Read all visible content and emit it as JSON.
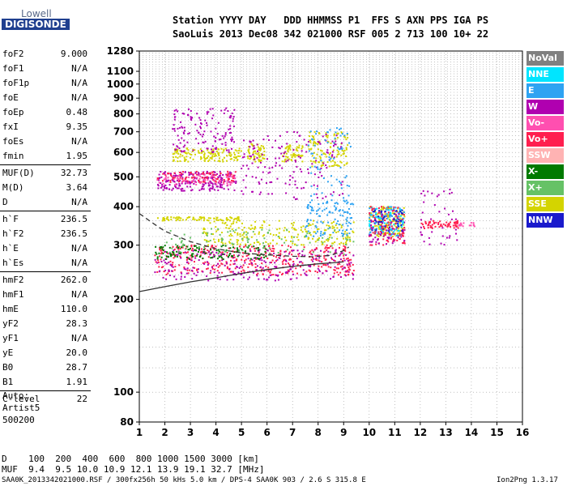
{
  "logo": {
    "top": "Lowell",
    "bottom": "DIGISONDE"
  },
  "header": {
    "line1": "Station YYYY DAY   DDD HHMMSS P1  FFS S AXN PPS IGA PS",
    "line2": "SaoLuis 2013 Dec08 342 021000 RSF 005 2 713 100 10+ 22"
  },
  "params": [
    [
      {
        "k": "foF2",
        "v": "9.000"
      },
      {
        "k": "foF1",
        "v": "N/A"
      },
      {
        "k": "foF1p",
        "v": "N/A"
      },
      {
        "k": "foE",
        "v": "N/A"
      },
      {
        "k": "foEp",
        "v": "0.48"
      },
      {
        "k": "fxI",
        "v": "9.35"
      },
      {
        "k": "foEs",
        "v": "N/A"
      },
      {
        "k": "fmin",
        "v": "1.95"
      }
    ],
    [
      {
        "k": "MUF(D)",
        "v": "32.73"
      },
      {
        "k": "M(D)",
        "v": "3.64"
      },
      {
        "k": "D",
        "v": "N/A"
      }
    ],
    [
      {
        "k": "h`F",
        "v": "236.5"
      },
      {
        "k": "h`F2",
        "v": "236.5"
      },
      {
        "k": "h`E",
        "v": "N/A"
      },
      {
        "k": "h`Es",
        "v": "N/A"
      }
    ],
    [
      {
        "k": "hmF2",
        "v": "262.0"
      },
      {
        "k": "hmF1",
        "v": "N/A"
      },
      {
        "k": "hmE",
        "v": "110.0"
      },
      {
        "k": "yF2",
        "v": "28.3"
      },
      {
        "k": "yF1",
        "v": "N/A"
      },
      {
        "k": "yE",
        "v": "20.0"
      },
      {
        "k": "B0",
        "v": "28.7"
      },
      {
        "k": "B1",
        "v": "1.91"
      }
    ],
    [
      {
        "k": "C-level",
        "v": "22"
      }
    ]
  ],
  "auto": {
    "line1": "Auto:",
    "line2": "Artist5",
    "line3": "500200"
  },
  "legend": [
    {
      "label": "NoVal",
      "color": "#808080"
    },
    {
      "label": "NNE",
      "color": "#00e5ff"
    },
    {
      "label": "E",
      "color": "#2fa3f2"
    },
    {
      "label": "W",
      "color": "#b000b0"
    },
    {
      "label": "Vo-",
      "color": "#ff4fb0"
    },
    {
      "label": "Vo+",
      "color": "#ff1f4f"
    },
    {
      "label": "SSW",
      "color": "#ffb3b3"
    },
    {
      "label": "X-",
      "color": "#007a00"
    },
    {
      "label": "X+",
      "color": "#66c266"
    },
    {
      "label": "SSE",
      "color": "#d4d400"
    },
    {
      "label": "NNW",
      "color": "#1a1acc"
    }
  ],
  "footer": {
    "d_row": "D    100  200  400  600  800 1000 1500 3000 [km]",
    "muf_row": "MUF  9.4  9.5 10.0 10.9 12.1 13.9 19.1 32.7 [MHz]",
    "info": "SAA0K_2013342021000.RSF / 300fx256h 50 kHs 5.0 km / DPS-4 SAA0K 903 / 2.6 S 315.8 E",
    "version": "Ion2Png 1.3.17"
  },
  "chart_data": {
    "type": "scatter",
    "xlabel": "",
    "ylabel": "",
    "xlim": [
      1,
      16
    ],
    "ylim": [
      80,
      1280
    ],
    "y_scale": "log",
    "x_ticks": [
      "1",
      "2",
      "3",
      "4",
      "5",
      "6",
      "7",
      "8",
      "9",
      "10",
      "11",
      "12",
      "13",
      "14",
      "15",
      "16"
    ],
    "y_ticks": [
      "80",
      "100",
      "200",
      "300",
      "400",
      "500",
      "600",
      "700",
      "800",
      "900",
      "1000",
      "1100",
      "1280"
    ],
    "trace_curves": [
      {
        "name": "dashed",
        "style": "dashed",
        "x": [
          1.0,
          1.5,
          2.0,
          3.0,
          4.0,
          5.0,
          6.0,
          7.0,
          7.8,
          8.5,
          9.0,
          9.2
        ],
        "y": [
          380,
          355,
          333,
          308,
          292,
          283,
          279,
          276,
          275,
          278,
          288,
          296
        ]
      },
      {
        "name": "solid",
        "style": "solid",
        "x": [
          1.0,
          2.0,
          3.0,
          4.0,
          5.0,
          6.0,
          7.0,
          8.0,
          8.6,
          9.0
        ],
        "y": [
          212,
          220,
          228,
          235,
          243,
          250,
          256,
          261,
          263,
          265
        ]
      }
    ],
    "point_clusters": [
      {
        "color": "#b000b0",
        "xr": [
          1.7,
          4.8
        ],
        "yr": [
          450,
          520
        ],
        "n": 220
      },
      {
        "color": "#ff1f4f",
        "xr": [
          1.7,
          4.8
        ],
        "yr": [
          480,
          520
        ],
        "n": 90
      },
      {
        "color": "#ff4fb0",
        "xr": [
          1.7,
          4.8
        ],
        "yr": [
          470,
          510
        ],
        "n": 60
      },
      {
        "color": "#d4d400",
        "xr": [
          2.3,
          5.0
        ],
        "yr": [
          560,
          620
        ],
        "n": 140
      },
      {
        "color": "#b000b0",
        "xr": [
          2.3,
          4.8
        ],
        "yr": [
          600,
          840
        ],
        "n": 140
      },
      {
        "color": "#d4d400",
        "xr": [
          5.2,
          5.9
        ],
        "yr": [
          560,
          640
        ],
        "n": 60
      },
      {
        "color": "#d4d400",
        "xr": [
          6.6,
          7.4
        ],
        "yr": [
          560,
          640
        ],
        "n": 60
      },
      {
        "color": "#d4d400",
        "xr": [
          7.6,
          9.2
        ],
        "yr": [
          540,
          700
        ],
        "n": 120
      },
      {
        "color": "#b000b0",
        "xr": [
          5.0,
          9.0
        ],
        "yr": [
          420,
          700
        ],
        "n": 160
      },
      {
        "color": "#2fa3f2",
        "xr": [
          7.6,
          9.3
        ],
        "yr": [
          380,
          720
        ],
        "n": 80
      },
      {
        "color": "#d4d400",
        "xr": [
          1.7,
          5.0
        ],
        "yr": [
          360,
          370
        ],
        "n": 80
      },
      {
        "color": "#ff1f4f",
        "xr": [
          1.6,
          9.4
        ],
        "yr": [
          240,
          300
        ],
        "n": 380
      },
      {
        "color": "#b000b0",
        "xr": [
          1.6,
          9.4
        ],
        "yr": [
          230,
          290
        ],
        "n": 260
      },
      {
        "color": "#007a00",
        "xr": [
          1.6,
          6.0
        ],
        "yr": [
          270,
          300
        ],
        "n": 120
      },
      {
        "color": "#d4d400",
        "xr": [
          3.5,
          9.4
        ],
        "yr": [
          300,
          360
        ],
        "n": 220
      },
      {
        "color": "#66c266",
        "xr": [
          2.0,
          9.4
        ],
        "yr": [
          280,
          340
        ],
        "n": 100
      },
      {
        "color": "#2fa3f2",
        "xr": [
          7.5,
          9.4
        ],
        "yr": [
          320,
          420
        ],
        "n": 100
      },
      {
        "color": "#d4d400",
        "xr": [
          10.0,
          11.4
        ],
        "yr": [
          320,
          400
        ],
        "n": 160
      },
      {
        "color": "#2fa3f2",
        "xr": [
          10.0,
          11.4
        ],
        "yr": [
          320,
          400
        ],
        "n": 100
      },
      {
        "color": "#ff1f4f",
        "xr": [
          10.0,
          11.4
        ],
        "yr": [
          300,
          400
        ],
        "n": 100
      },
      {
        "color": "#b000b0",
        "xr": [
          10.0,
          11.4
        ],
        "yr": [
          300,
          380
        ],
        "n": 60
      },
      {
        "color": "#00e5ff",
        "xr": [
          10.0,
          11.4
        ],
        "yr": [
          330,
          400
        ],
        "n": 40
      },
      {
        "color": "#1a1acc",
        "xr": [
          10.0,
          11.4
        ],
        "yr": [
          330,
          390
        ],
        "n": 40
      },
      {
        "color": "#ff1f4f",
        "xr": [
          12.0,
          13.5
        ],
        "yr": [
          340,
          360
        ],
        "n": 60
      },
      {
        "color": "#b000b0",
        "xr": [
          12.0,
          13.5
        ],
        "yr": [
          300,
          460
        ],
        "n": 40
      },
      {
        "color": "#ff4fb0",
        "xr": [
          13.5,
          14.2
        ],
        "yr": [
          345,
          355
        ],
        "n": 15
      }
    ]
  }
}
